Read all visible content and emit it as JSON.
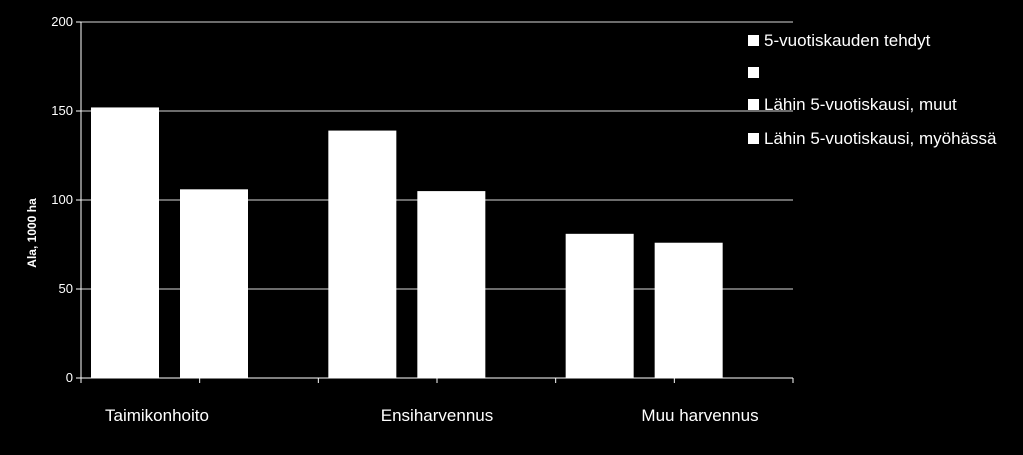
{
  "chart_data": {
    "type": "bar",
    "title": "",
    "xlabel": "",
    "ylabel": "Ala, 1000 ha",
    "ylim": [
      0,
      200
    ],
    "yticks": [
      0,
      50,
      100,
      150,
      200
    ],
    "grid": true,
    "legend_position": "top-right",
    "categories": [
      "Taimikonhoito",
      "Ensiharvennus",
      "Muu harvennus"
    ],
    "series": [
      {
        "name": "5-vuotiskauden tehdyt",
        "values": [
          152,
          139,
          81
        ]
      },
      {
        "name": "",
        "values": [
          106,
          105,
          76
        ]
      },
      {
        "name": "Lähin 5-vuotiskausi, muut",
        "values": [
          null,
          null,
          null
        ]
      },
      {
        "name": "Lähin 5-vuotiskausi, myöhässä",
        "values": [
          null,
          null,
          null
        ]
      }
    ],
    "colors": {
      "background": "#000000",
      "bar": "#ffffff",
      "grid": "#ffffff",
      "text": "#ffffff"
    }
  }
}
